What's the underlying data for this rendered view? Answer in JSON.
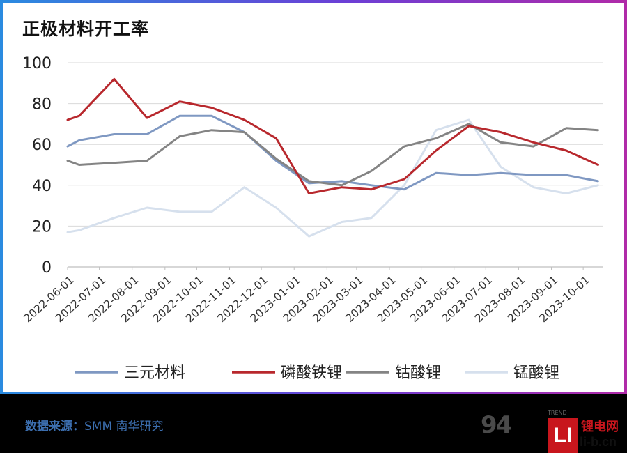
{
  "title": "正极材料开工率",
  "source": {
    "label": "数据来源：",
    "text": "SMM 南华研究"
  },
  "watermark": {
    "logo_text": "94",
    "logo_sub": "TREND",
    "brand_mark": "LI",
    "brand_name": "锂电网",
    "brand_url": "li-b.cn"
  },
  "colors": {
    "ternary": "#7f98c2",
    "lfp": "#b8282d",
    "lco": "#848484",
    "lmo": "#d6e0ed"
  },
  "chart_data": {
    "type": "line",
    "title": "正极材料开工率",
    "xlabel": "",
    "ylabel": "",
    "ylim": [
      0,
      100
    ],
    "yticks": [
      "0",
      "20",
      "40",
      "60",
      "80",
      "100"
    ],
    "grid": true,
    "legend": "bottom",
    "x_labels": [
      "2022-06-01",
      "2022-07-01",
      "2022-08-01",
      "2022-09-01",
      "2022-10-01",
      "2022-11-01",
      "2022-12-01",
      "2023-01-01",
      "2023-02-01",
      "2023-03-01",
      "2023-04-01",
      "2023-05-01",
      "2023-06-01",
      "2023-07-01",
      "2023-08-01",
      "2023-09-01",
      "2023-10-01"
    ],
    "series": [
      {
        "name": "三元材料",
        "color": "#7f98c2",
        "x": [
          "2022-06-01",
          "2022-06-12",
          "2022-07-15",
          "2022-08-15",
          "2022-09-15",
          "2022-10-15",
          "2022-11-15",
          "2022-12-15",
          "2023-01-15",
          "2023-02-15",
          "2023-03-15",
          "2023-04-15",
          "2023-05-15",
          "2023-06-15",
          "2023-07-15",
          "2023-08-15",
          "2023-09-15",
          "2023-10-15"
        ],
        "y": [
          59,
          62,
          65,
          65,
          74,
          74,
          66,
          52,
          41,
          42,
          40,
          38,
          46,
          45,
          46,
          45,
          45,
          42
        ]
      },
      {
        "name": "磷酸铁锂",
        "color": "#b8282d",
        "x": [
          "2022-06-01",
          "2022-06-12",
          "2022-07-15",
          "2022-08-15",
          "2022-09-15",
          "2022-10-15",
          "2022-11-15",
          "2022-12-15",
          "2023-01-15",
          "2023-02-15",
          "2023-03-15",
          "2023-04-15",
          "2023-05-15",
          "2023-06-15",
          "2023-07-15",
          "2023-08-15",
          "2023-09-15",
          "2023-10-15"
        ],
        "y": [
          72,
          74,
          92,
          73,
          81,
          78,
          72,
          63,
          36,
          39,
          38,
          43,
          57,
          69,
          66,
          61,
          57,
          50
        ]
      },
      {
        "name": "钴酸锂",
        "color": "#848484",
        "x": [
          "2022-06-01",
          "2022-06-12",
          "2022-07-15",
          "2022-08-15",
          "2022-09-15",
          "2022-10-15",
          "2022-11-15",
          "2022-12-15",
          "2023-01-15",
          "2023-02-15",
          "2023-03-15",
          "2023-04-15",
          "2023-05-15",
          "2023-06-15",
          "2023-07-15",
          "2023-08-15",
          "2023-09-15",
          "2023-10-15"
        ],
        "y": [
          52,
          50,
          51,
          52,
          64,
          67,
          66,
          53,
          42,
          40,
          47,
          59,
          63,
          70,
          61,
          59,
          68,
          67
        ]
      },
      {
        "name": "锰酸锂",
        "color": "#d6e0ed",
        "x": [
          "2022-06-01",
          "2022-06-12",
          "2022-07-15",
          "2022-08-15",
          "2022-09-15",
          "2022-10-15",
          "2022-11-15",
          "2022-12-15",
          "2023-01-15",
          "2023-02-15",
          "2023-03-15",
          "2023-04-15",
          "2023-05-15",
          "2023-06-15",
          "2023-07-15",
          "2023-08-15",
          "2023-09-15",
          "2023-10-15"
        ],
        "y": [
          17,
          18,
          24,
          29,
          27,
          27,
          39,
          29,
          15,
          22,
          24,
          40,
          67,
          72,
          49,
          39,
          36,
          40
        ]
      }
    ]
  }
}
